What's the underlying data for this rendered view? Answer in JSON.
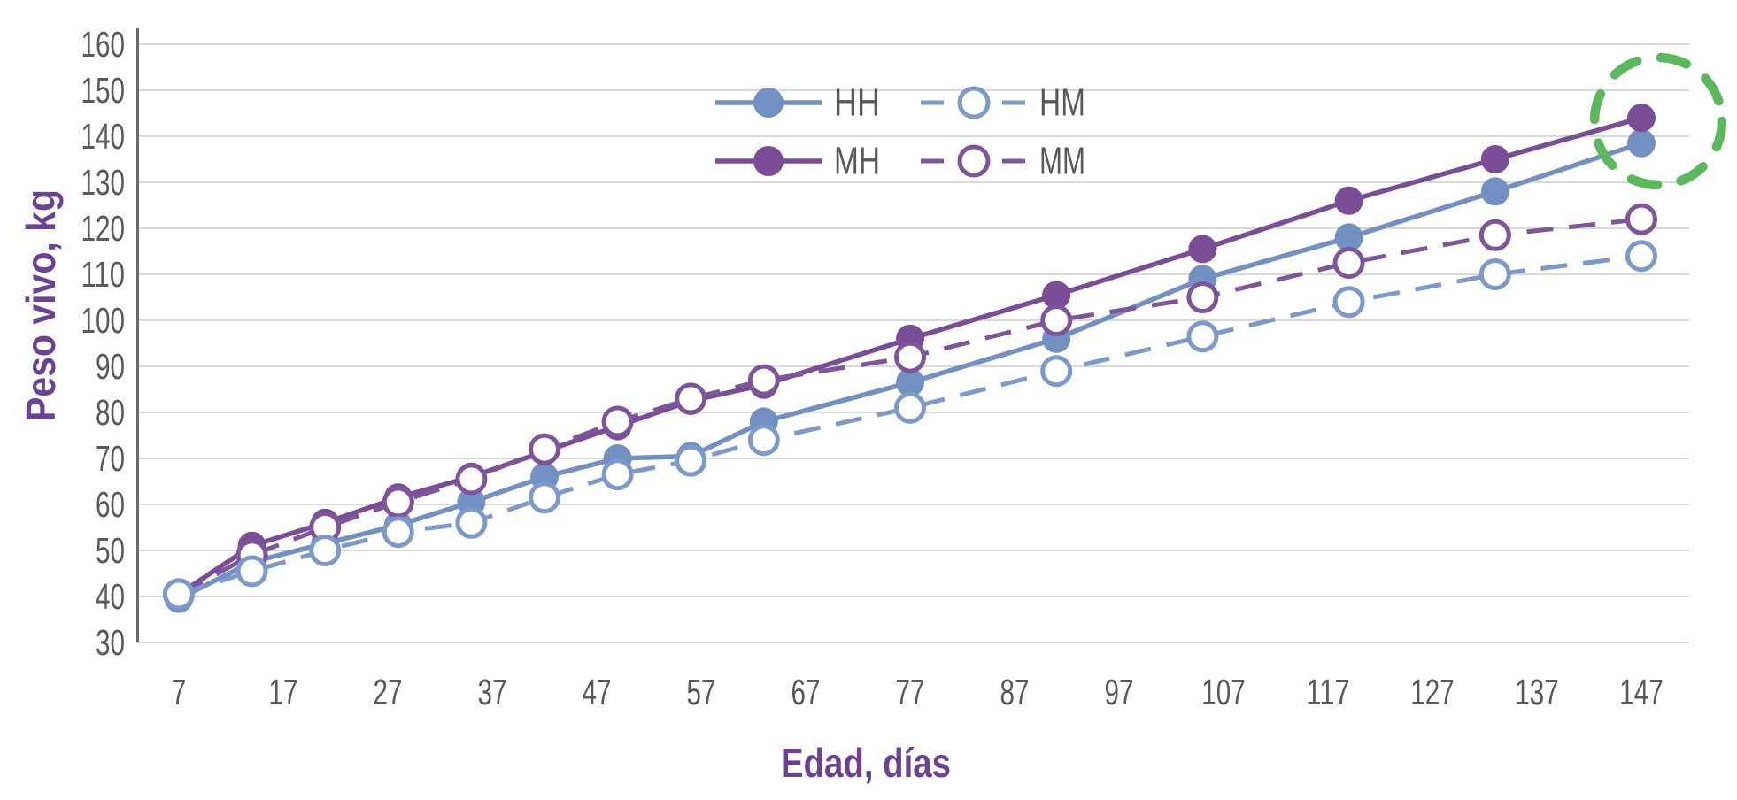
{
  "chart_data": {
    "type": "line",
    "title": "",
    "xlabel": "Edad, días",
    "ylabel": "Peso vivo, kg",
    "x_tick_labels": [
      "7",
      "17",
      "27",
      "37",
      "47",
      "57",
      "67",
      "77",
      "87",
      "97",
      "107",
      "117",
      "127",
      "137",
      "147"
    ],
    "y_tick_labels": [
      "30",
      "40",
      "50",
      "60",
      "70",
      "80",
      "90",
      "100",
      "110",
      "120",
      "130",
      "140",
      "150",
      "160"
    ],
    "ylim": [
      30,
      160
    ],
    "xlim": [
      3,
      152
    ],
    "grid": true,
    "x_days": [
      7,
      14,
      21,
      28,
      35,
      42,
      49,
      56,
      63,
      77,
      91,
      105,
      119,
      133,
      147
    ],
    "series": [
      {
        "name": "HH",
        "color": "#7290C1",
        "line_style": "solid",
        "marker": "filled-circle",
        "values": [
          39.5,
          47.5,
          51.5,
          55.5,
          60.5,
          66,
          70,
          70.5,
          78,
          86.5,
          96,
          109,
          118,
          128,
          138.5
        ]
      },
      {
        "name": "MH",
        "color": "#7A4E96",
        "line_style": "solid",
        "marker": "filled-circle",
        "values": [
          40.5,
          51,
          56,
          61.5,
          66,
          71.5,
          77,
          82.5,
          86,
          96,
          105.5,
          115.5,
          126,
          135,
          144
        ]
      },
      {
        "name": "MM",
        "color": "#7E549B",
        "line_style": "dashed",
        "marker": "open-circle",
        "values": [
          40.5,
          49,
          55,
          60.5,
          65.5,
          72,
          78,
          83,
          87,
          92,
          100,
          105,
          112.5,
          118.5,
          122
        ]
      },
      {
        "name": "HM",
        "color": "#7B99CA",
        "line_style": "dashed",
        "marker": "open-circle",
        "values": [
          40.5,
          45.5,
          50,
          54,
          56,
          61.5,
          66.5,
          69.5,
          74,
          81,
          89,
          96.5,
          104,
          110,
          114
        ]
      }
    ],
    "legend": {
      "position": "top-center",
      "columns": 2,
      "row1": [
        "HH",
        "HM"
      ],
      "row2": [
        "MH",
        "MM"
      ]
    },
    "annotation": {
      "type": "dashed-circle",
      "color": "#5CB85C",
      "highlights_day": 147,
      "highlights_series": [
        "MH",
        "HH"
      ]
    },
    "colors": {
      "grid": "#D9D9D9",
      "axis_line": "#6B6B6B",
      "tick_text": "#595959",
      "axis_title": "#6B4192"
    }
  }
}
